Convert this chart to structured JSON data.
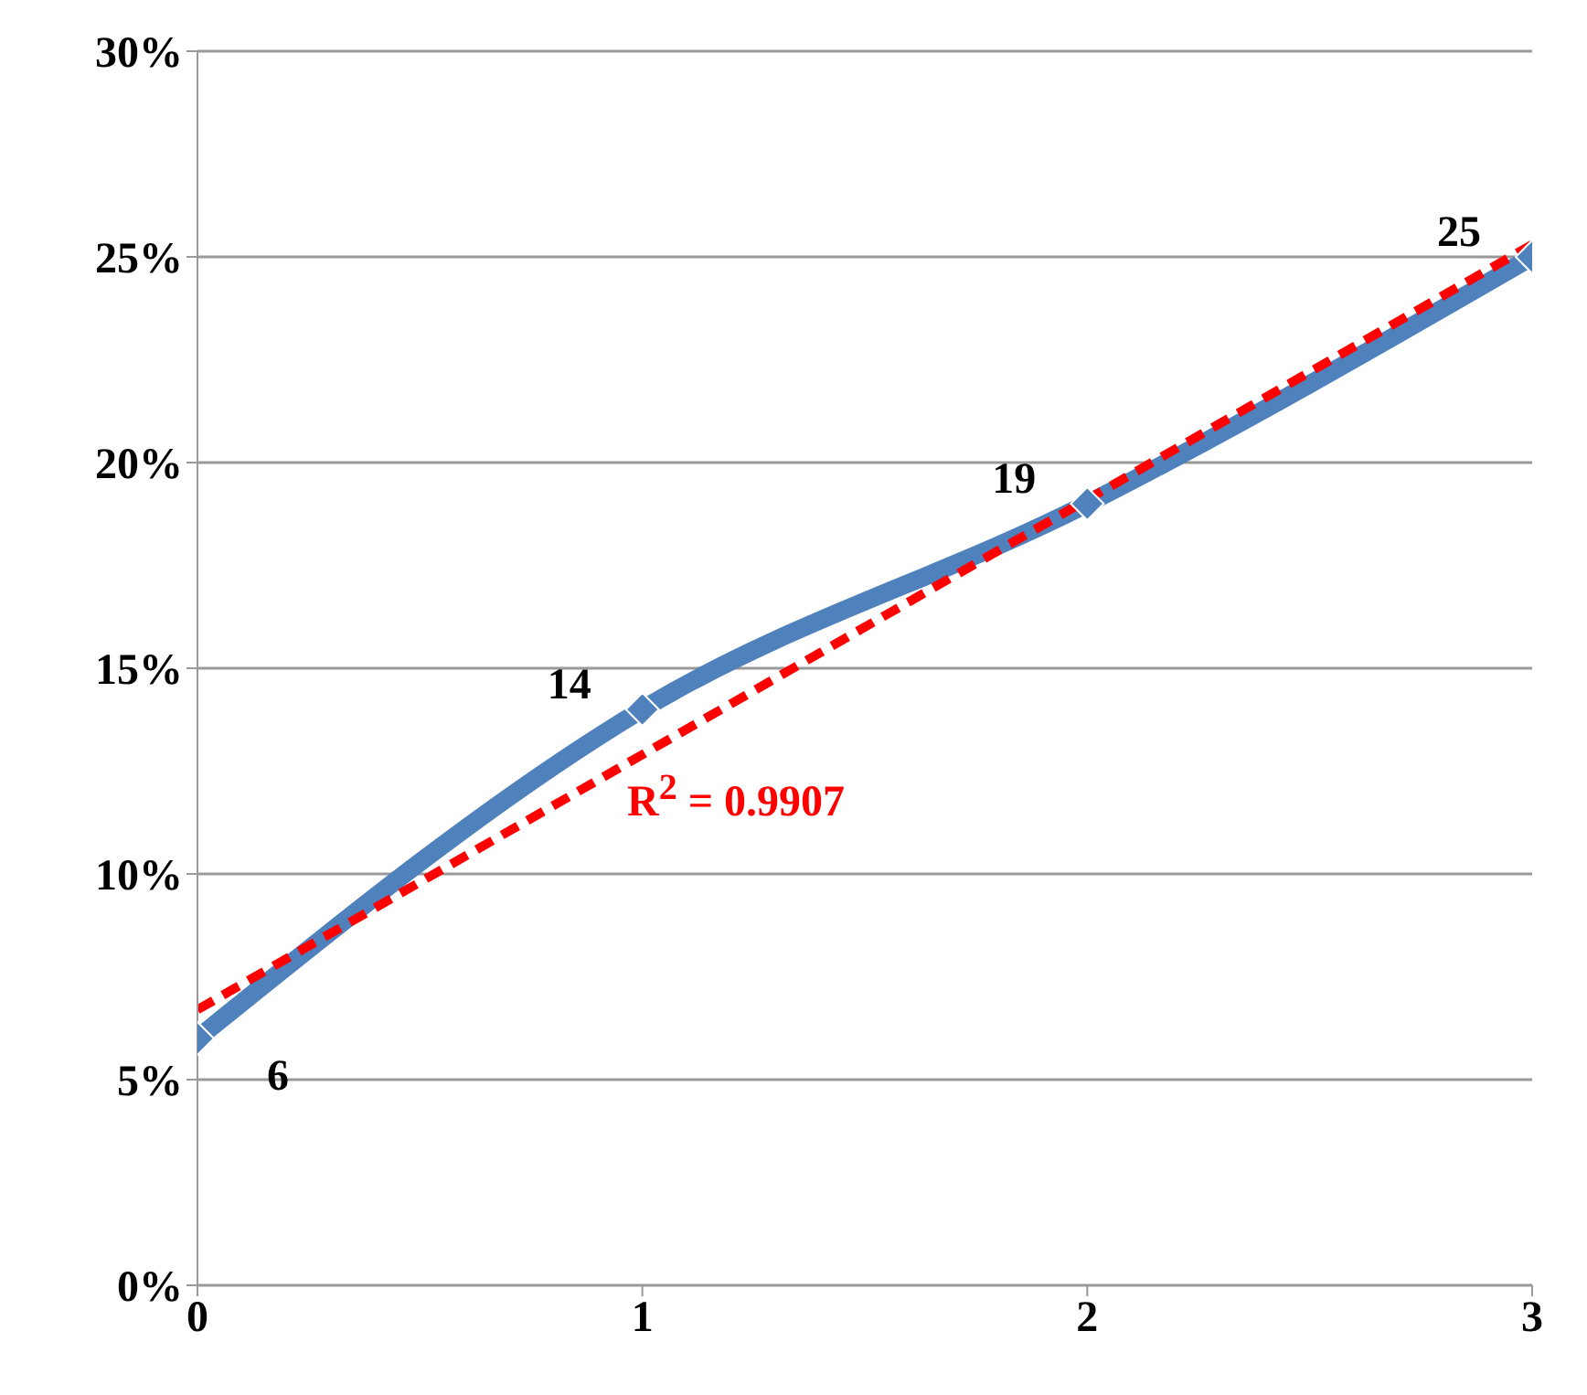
{
  "chart_data": {
    "type": "line",
    "x": [
      0,
      1,
      2,
      3
    ],
    "series": [
      {
        "color": "#4f81bd",
        "values": [
          6,
          14,
          19,
          25
        ],
        "value_labels": [
          "6",
          "14",
          "19",
          "25"
        ],
        "marker": "diamond",
        "line_style": "solid"
      },
      {
        "type": "line",
        "x": [
          0,
          3
        ],
        "values": [
          6.7,
          25.3
        ],
        "color": "#ff0000",
        "line_style": "dashed",
        "marker": "none"
      }
    ],
    "xlim": [
      0,
      3
    ],
    "xticks": [
      0,
      1,
      2,
      3
    ],
    "ylim": [
      0,
      30
    ],
    "yticks": [
      {
        "value": 0,
        "label": "0%"
      },
      {
        "value": 5,
        "label": "5%"
      },
      {
        "value": 10,
        "label": "10%"
      },
      {
        "value": 15,
        "label": "15%"
      },
      {
        "value": 20,
        "label": "20%"
      },
      {
        "value": 25,
        "label": "25%"
      },
      {
        "value": 30,
        "label": "30%"
      }
    ],
    "grid": "y",
    "legend": false,
    "annotations": [
      "R$^{2}$ = 0.9907"
    ]
  }
}
